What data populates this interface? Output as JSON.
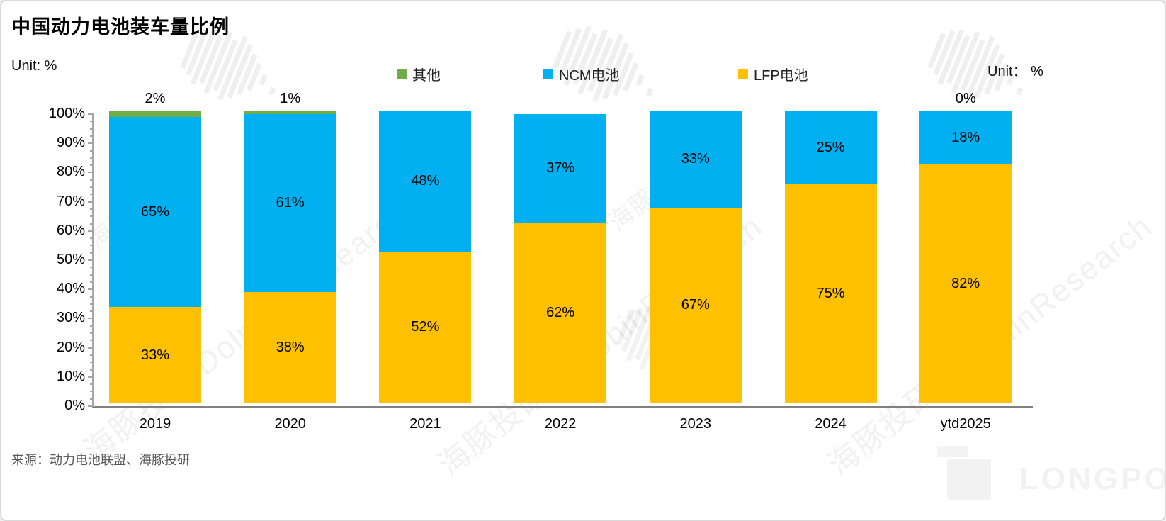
{
  "title": "中国动力电池装车量比例",
  "unit_left": "Unit: %",
  "unit_right": "Unit： %",
  "source": "来源：动力电池联盟、海豚投研",
  "watermark": {
    "cn": "海豚投研",
    "en": "DolphinResearch",
    "logo_text": "LONGPORT"
  },
  "legend": [
    {
      "label": "其他",
      "color": "#70AD47"
    },
    {
      "label": "NCM电池",
      "color": "#00B0F0"
    },
    {
      "label": "LFP电池",
      "color": "#FFC000"
    }
  ],
  "chart_data": {
    "type": "bar",
    "stacked": true,
    "title": "中国动力电池装车量比例",
    "xlabel": "",
    "ylabel": "Unit: %",
    "ylim": [
      0,
      100
    ],
    "yticks": [
      "0%",
      "10%",
      "20%",
      "30%",
      "40%",
      "50%",
      "60%",
      "70%",
      "80%",
      "90%",
      "100%"
    ],
    "grid": false,
    "legend_position": "top",
    "categories": [
      "2019",
      "2020",
      "2021",
      "2022",
      "2023",
      "2024",
      "ytd2025"
    ],
    "series": [
      {
        "name": "LFP电池",
        "color": "#FFC000",
        "values": [
          33,
          38,
          52,
          62,
          67,
          75,
          82
        ],
        "labels": [
          "33%",
          "38%",
          "52%",
          "62%",
          "67%",
          "75%",
          "82%"
        ]
      },
      {
        "name": "NCM电池",
        "color": "#00B0F0",
        "values": [
          65,
          61,
          48,
          37,
          33,
          25,
          18
        ],
        "labels": [
          "65%",
          "61%",
          "48%",
          "37%",
          "33%",
          "25%",
          "18%"
        ]
      },
      {
        "name": "其他",
        "color": "#70AD47",
        "values": [
          2,
          1,
          0,
          0,
          0,
          0,
          0
        ],
        "labels": [
          null,
          null,
          null,
          null,
          null,
          null,
          null
        ]
      }
    ],
    "above_bar_labels": [
      "2%",
      "1%",
      null,
      null,
      null,
      null,
      "0%"
    ]
  }
}
